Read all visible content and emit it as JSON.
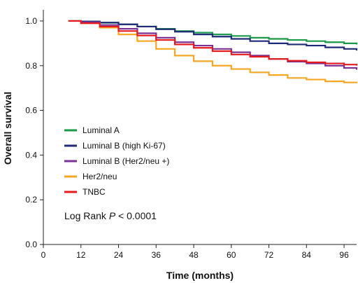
{
  "chart_data": {
    "type": "line",
    "step": true,
    "xlabel": "Time (months)",
    "ylabel": "Overall survival",
    "xlim": [
      0,
      100
    ],
    "ylim": [
      0,
      1.05
    ],
    "xticks": [
      0,
      12,
      24,
      36,
      48,
      60,
      72,
      84,
      96
    ],
    "xtick_labels": [
      "0",
      "12",
      "24",
      "36",
      "48",
      "60",
      "72",
      "84",
      "96"
    ],
    "yticks": [
      0,
      0.2,
      0.4,
      0.6,
      0.8,
      1.0
    ],
    "ytick_labels": [
      "0.0",
      "0.2",
      "0.4",
      "0.6",
      "0.8",
      "1.0"
    ],
    "grid": false,
    "legend_position": "bottom-left",
    "series": [
      {
        "name": "Luminal A",
        "color": "#1a9a48",
        "x": [
          8,
          12,
          18,
          24,
          30,
          36,
          42,
          48,
          54,
          60,
          66,
          72,
          78,
          84,
          90,
          96,
          100
        ],
        "y": [
          1.0,
          0.998,
          0.992,
          0.985,
          0.975,
          0.965,
          0.955,
          0.948,
          0.94,
          0.933,
          0.925,
          0.92,
          0.915,
          0.91,
          0.905,
          0.9,
          0.895
        ]
      },
      {
        "name": "Luminal B (high Ki-67)",
        "color": "#1f2a78",
        "x": [
          8,
          12,
          18,
          24,
          30,
          36,
          42,
          48,
          54,
          60,
          66,
          72,
          78,
          84,
          90,
          96,
          100
        ],
        "y": [
          1.0,
          0.998,
          0.993,
          0.985,
          0.975,
          0.963,
          0.952,
          0.94,
          0.93,
          0.92,
          0.91,
          0.9,
          0.895,
          0.89,
          0.882,
          0.875,
          0.868
        ]
      },
      {
        "name": "Luminal B (Her2/neu +)",
        "color": "#7b3294",
        "x": [
          8,
          12,
          18,
          24,
          30,
          36,
          42,
          48,
          54,
          60,
          66,
          72,
          78,
          84,
          90,
          96,
          100
        ],
        "y": [
          1.0,
          0.995,
          0.982,
          0.965,
          0.945,
          0.925,
          0.905,
          0.89,
          0.875,
          0.86,
          0.845,
          0.83,
          0.818,
          0.81,
          0.8,
          0.79,
          0.782
        ]
      },
      {
        "name": "Her2/neu",
        "color": "#f5a623",
        "x": [
          8,
          12,
          18,
          24,
          30,
          36,
          42,
          48,
          54,
          60,
          66,
          72,
          78,
          84,
          90,
          96,
          100
        ],
        "y": [
          1.0,
          0.99,
          0.97,
          0.94,
          0.91,
          0.875,
          0.845,
          0.82,
          0.8,
          0.785,
          0.77,
          0.758,
          0.745,
          0.738,
          0.73,
          0.725,
          0.722
        ]
      },
      {
        "name": "TNBC",
        "color": "#e41a1c",
        "x": [
          8,
          12,
          18,
          24,
          30,
          36,
          42,
          48,
          54,
          60,
          66,
          72,
          78,
          84,
          90,
          96,
          100
        ],
        "y": [
          1.0,
          0.99,
          0.975,
          0.955,
          0.935,
          0.915,
          0.895,
          0.88,
          0.865,
          0.85,
          0.84,
          0.83,
          0.822,
          0.815,
          0.81,
          0.805,
          0.8
        ]
      }
    ],
    "annotation": {
      "prefix": "Log Rank ",
      "italic": "P",
      "suffix": " < 0.0001"
    }
  }
}
